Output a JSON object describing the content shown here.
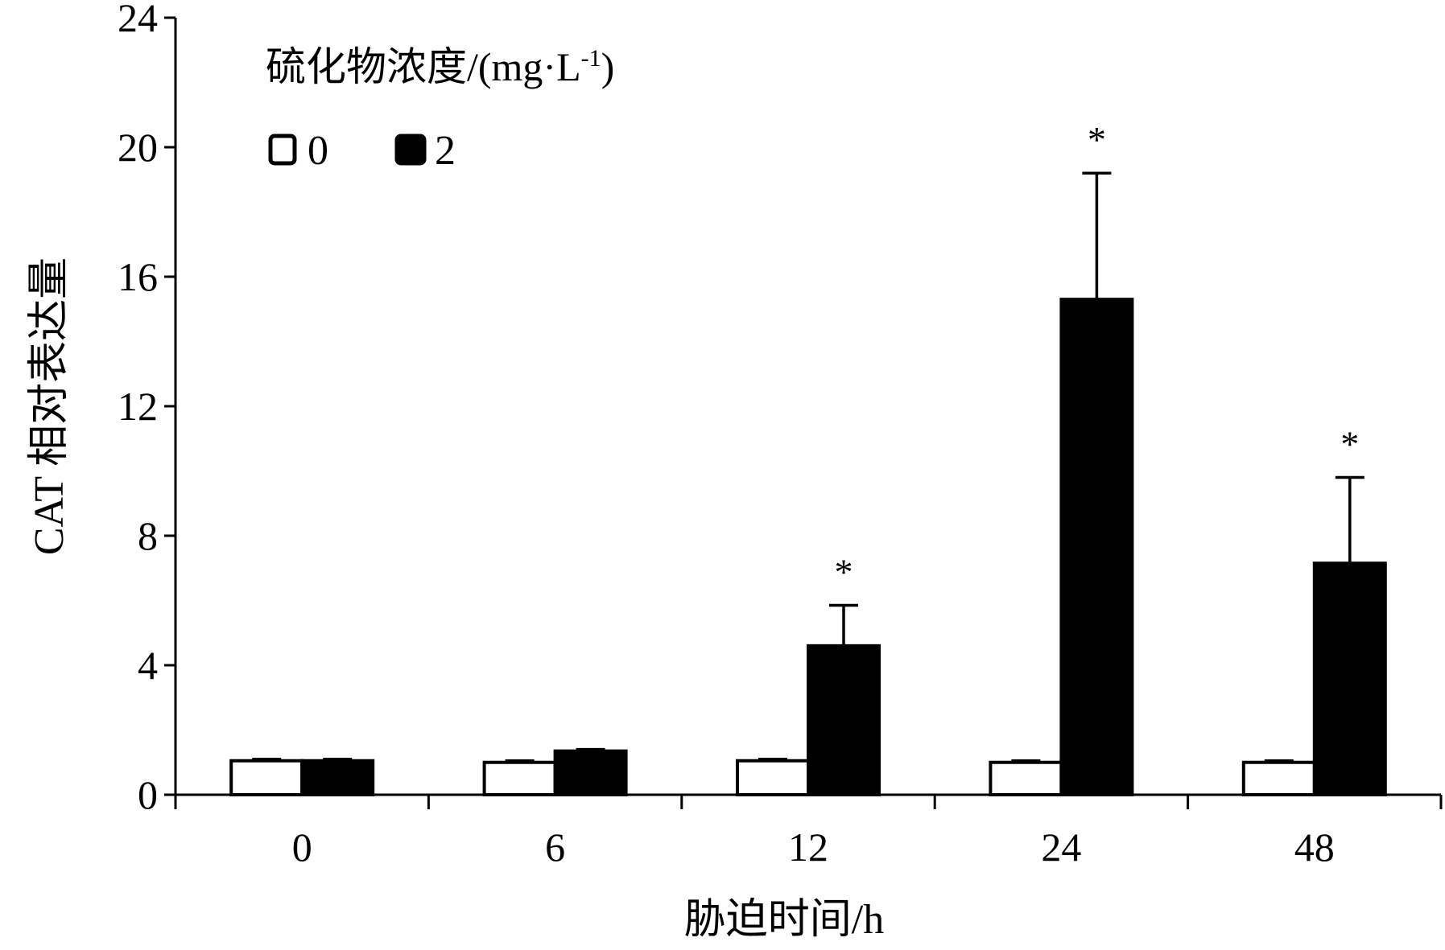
{
  "chart_data": {
    "type": "bar",
    "categories": [
      "0",
      "6",
      "12",
      "24",
      "48"
    ],
    "xlabel": "胁迫时间/h",
    "ylabel": "CAT 相对表达量",
    "ylim": [
      0,
      24
    ],
    "yticks": [
      "0",
      "4",
      "8",
      "12",
      "16",
      "20",
      "24"
    ],
    "grid": false,
    "legend": {
      "title": "硫化物浓度/(mg·L",
      "title_sup": "-1",
      "title_end": ")",
      "placement": "top-left"
    },
    "series": [
      {
        "name": "0",
        "color": "#ffffff",
        "values": [
          1.05,
          1.0,
          1.05,
          1.0,
          1.0
        ],
        "errors": [
          0.05,
          0.05,
          0.05,
          0.05,
          0.05
        ],
        "significance": [
          "",
          "",
          "",
          "",
          ""
        ]
      },
      {
        "name": "2",
        "color": "#000000",
        "values": [
          1.05,
          1.35,
          4.6,
          15.3,
          7.15
        ],
        "errors": [
          0.05,
          0.05,
          1.25,
          3.9,
          2.65
        ],
        "significance": [
          "",
          "",
          "*",
          "*",
          "*"
        ]
      }
    ]
  }
}
